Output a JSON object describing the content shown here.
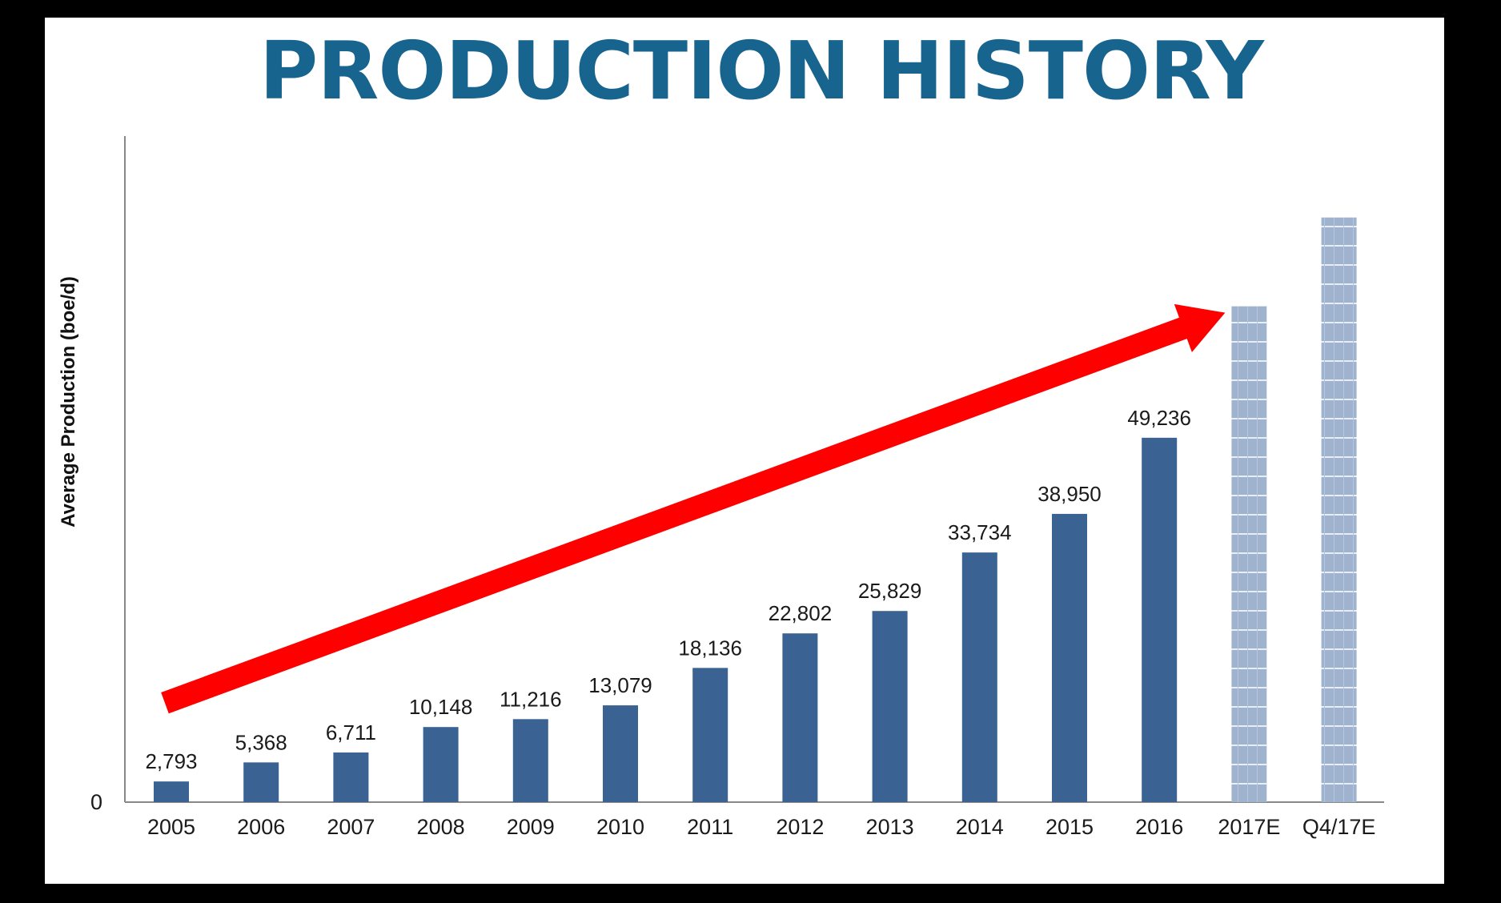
{
  "slide": {
    "title": "PRODUCTION HISTORY"
  },
  "chart_data": {
    "type": "bar",
    "title": "PRODUCTION HISTORY",
    "xlabel": "",
    "ylabel": "Average Production (boe/d)",
    "ylim": [
      0,
      90000
    ],
    "y_ticks": [
      "0"
    ],
    "categories": [
      "2005",
      "2006",
      "2007",
      "2008",
      "2009",
      "2010",
      "2011",
      "2012",
      "2013",
      "2014",
      "2015",
      "2016",
      "2017E",
      "Q4/17E"
    ],
    "values": [
      2793,
      5368,
      6711,
      10148,
      11216,
      13079,
      18136,
      22802,
      25829,
      33734,
      38950,
      49236,
      67000,
      79000
    ],
    "data_labels": [
      "2,793",
      "5,368",
      "6,711",
      "10,148",
      "11,216",
      "13,079",
      "18,136",
      "22,802",
      "25,829",
      "33,734",
      "38,950",
      "49,236",
      "",
      ""
    ],
    "estimate_flags": [
      false,
      false,
      false,
      false,
      false,
      false,
      false,
      false,
      false,
      false,
      false,
      false,
      true,
      true
    ],
    "grid": false,
    "legend": "none",
    "annotation": "red trend arrow from 2005 rising to 2017E",
    "colors": {
      "actual_bar": "#3a6293",
      "estimate_bar": "#9fb3cf",
      "estimate_pattern": "#e8eef6",
      "arrow": "#ff0000",
      "title": "#17648f",
      "axis": "#888888"
    }
  }
}
